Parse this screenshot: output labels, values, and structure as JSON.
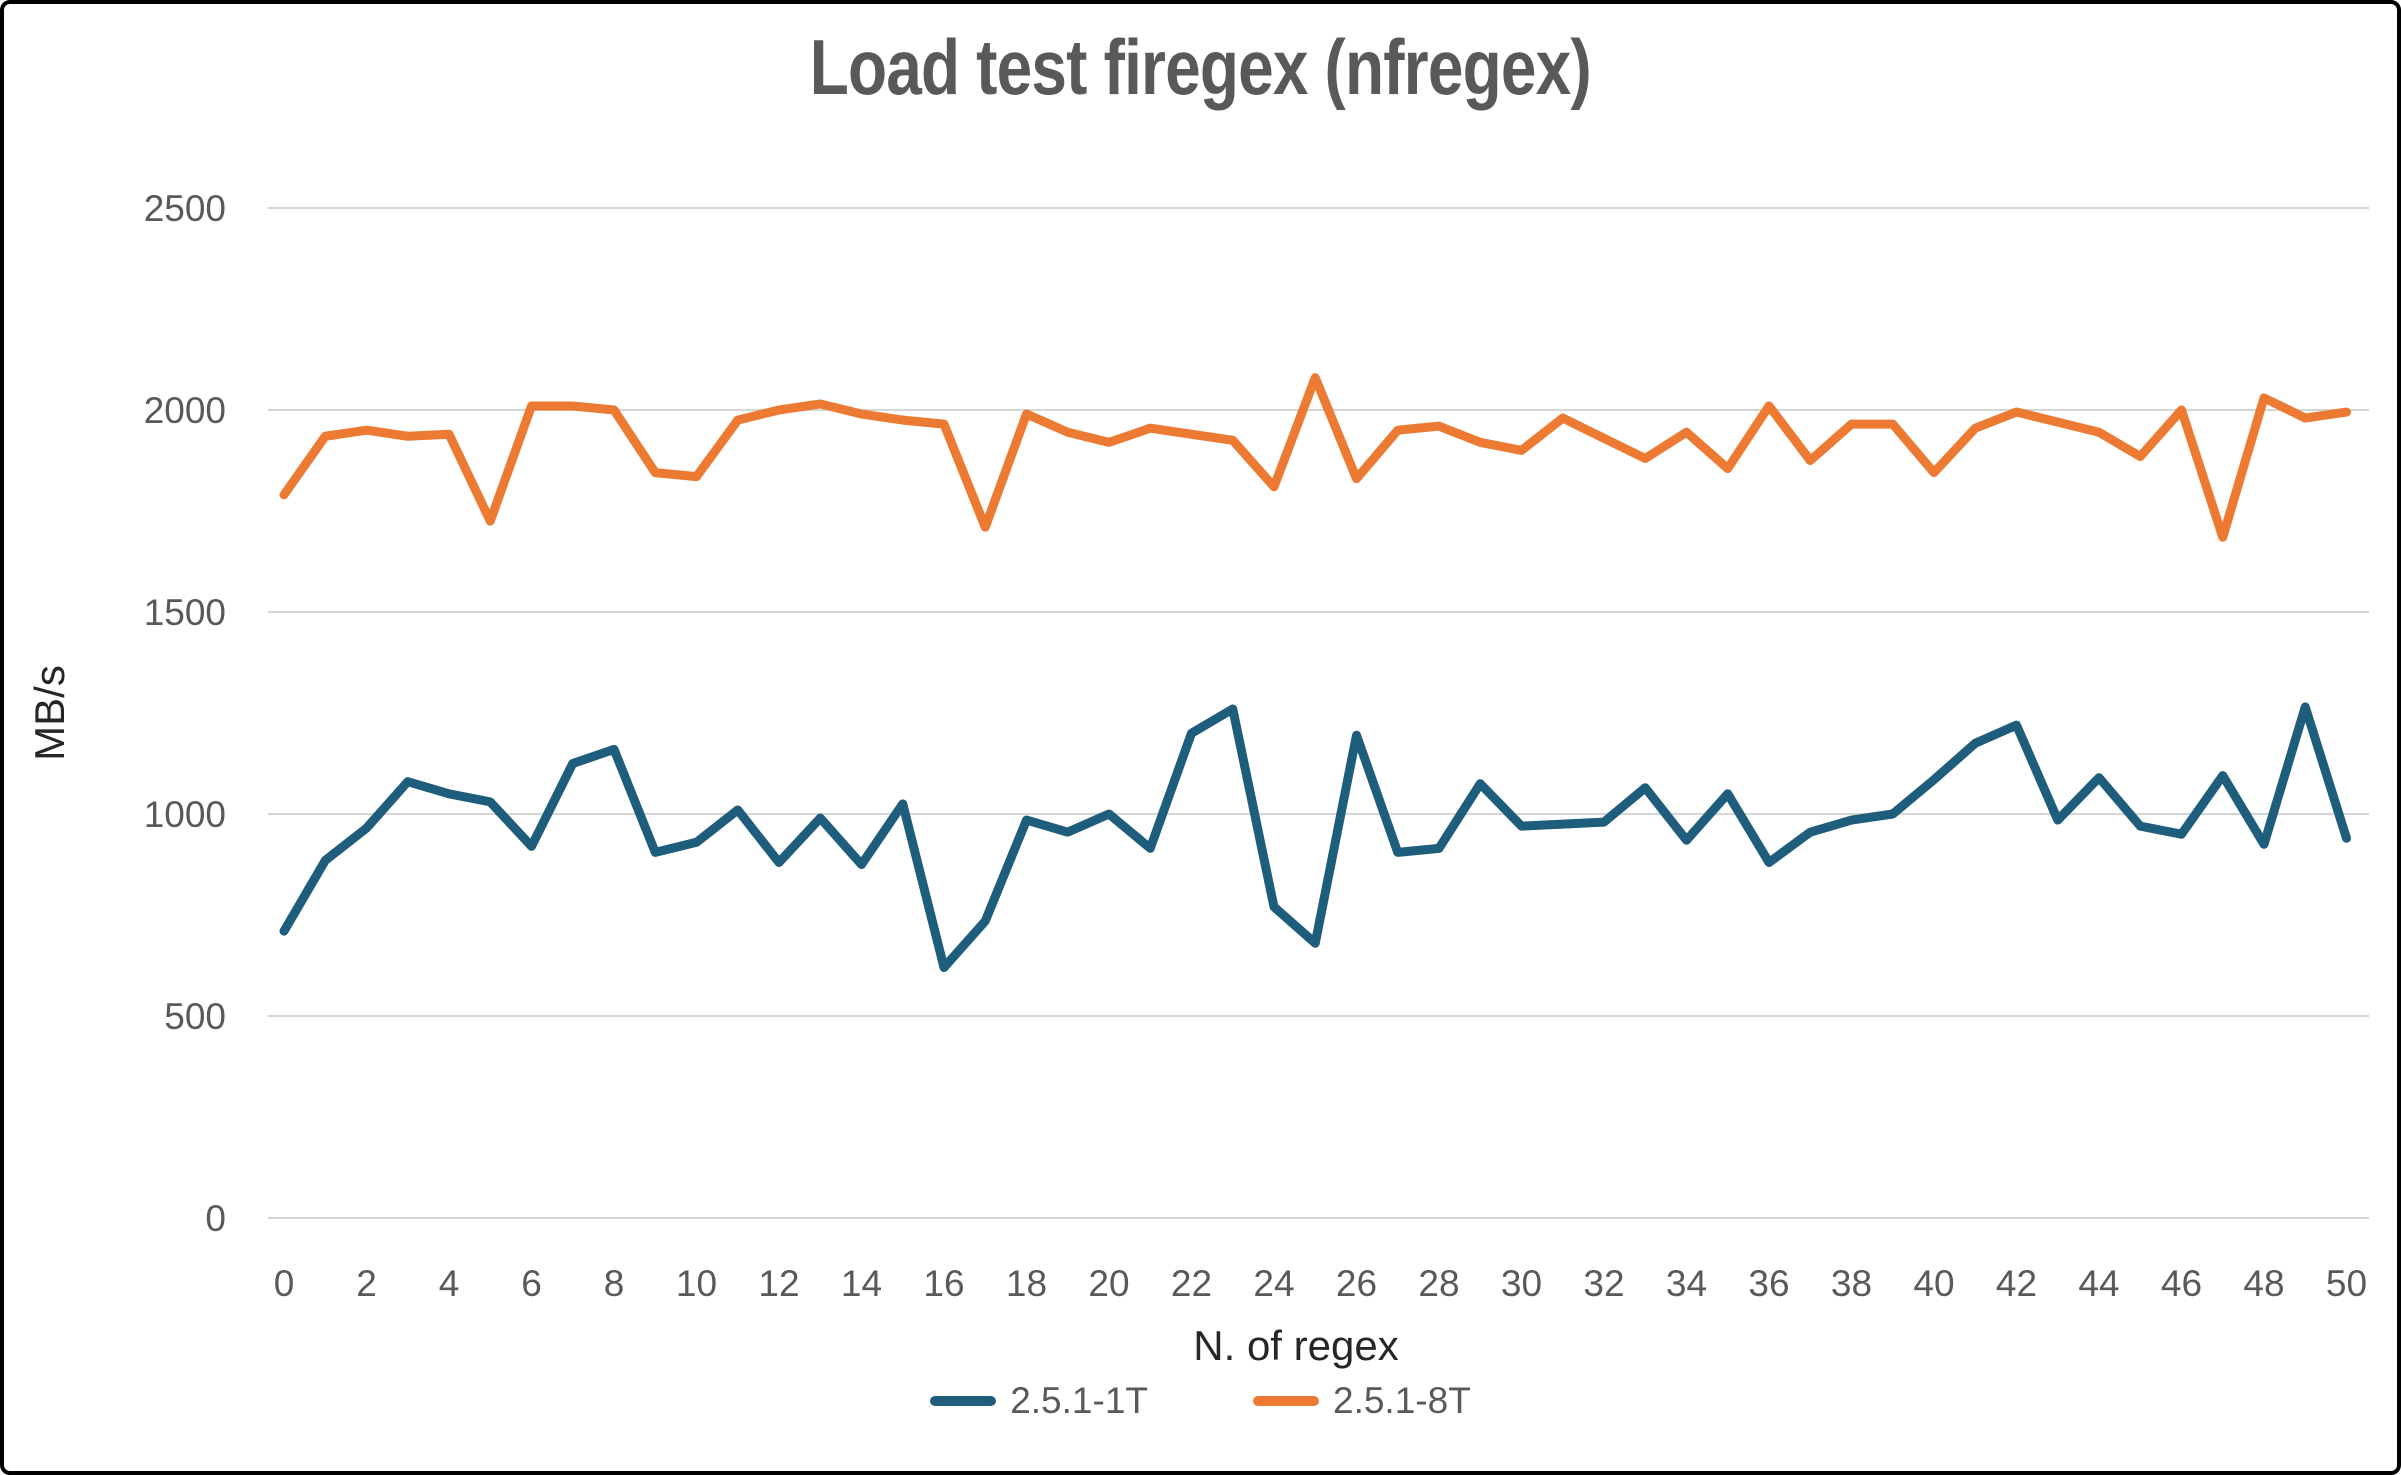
{
  "title": "Load test firegex (nfregex)",
  "chart_data": {
    "type": "line",
    "title": "Load test firegex (nfregex)",
    "xlabel": "N. of regex",
    "ylabel": "MB/s",
    "x": [
      0,
      1,
      2,
      3,
      4,
      5,
      6,
      7,
      8,
      9,
      10,
      11,
      12,
      13,
      14,
      15,
      16,
      17,
      18,
      19,
      20,
      21,
      22,
      23,
      24,
      25,
      26,
      27,
      28,
      29,
      30,
      31,
      32,
      33,
      34,
      35,
      36,
      37,
      38,
      39,
      40,
      41,
      42,
      43,
      44,
      45,
      46,
      47,
      48,
      49,
      50
    ],
    "x_tick_labels": [
      0,
      2,
      4,
      6,
      8,
      10,
      12,
      14,
      16,
      18,
      20,
      22,
      24,
      26,
      28,
      30,
      32,
      34,
      36,
      38,
      40,
      42,
      44,
      46,
      48,
      50
    ],
    "ylim": [
      0,
      2500
    ],
    "y_ticks": [
      0,
      500,
      1000,
      1500,
      2000,
      2500
    ],
    "grid": "horizontal",
    "legend_position": "bottom",
    "series": [
      {
        "name": "2.5.1-1T",
        "color": "#1F5D7D",
        "values": [
          710,
          885,
          965,
          1080,
          1050,
          1030,
          920,
          1125,
          1160,
          905,
          930,
          1010,
          880,
          990,
          875,
          1025,
          620,
          735,
          985,
          955,
          1000,
          915,
          1200,
          1260,
          770,
          680,
          1195,
          905,
          915,
          1075,
          970,
          975,
          980,
          1065,
          935,
          1050,
          880,
          955,
          985,
          1000,
          1085,
          1175,
          1220,
          985,
          1090,
          970,
          950,
          1095,
          925,
          1265,
          940
        ]
      },
      {
        "name": "2.5.1-8T",
        "color": "#EC7A32",
        "values": [
          1790,
          1935,
          1950,
          1935,
          1940,
          1725,
          2010,
          2010,
          2000,
          1845,
          1835,
          1975,
          2000,
          2015,
          1990,
          1975,
          1965,
          1710,
          1990,
          1945,
          1920,
          1955,
          1940,
          1925,
          1810,
          2080,
          1830,
          1950,
          1960,
          1920,
          1900,
          1980,
          1930,
          1880,
          1945,
          1855,
          2010,
          1875,
          1965,
          1965,
          1845,
          1955,
          1995,
          1970,
          1945,
          1885,
          2000,
          1685,
          2030,
          1980,
          1995
        ]
      }
    ],
    "gridline_color": "#D6D6D6",
    "tick_label_color": "#595959",
    "axis_title_color": "#262626"
  }
}
